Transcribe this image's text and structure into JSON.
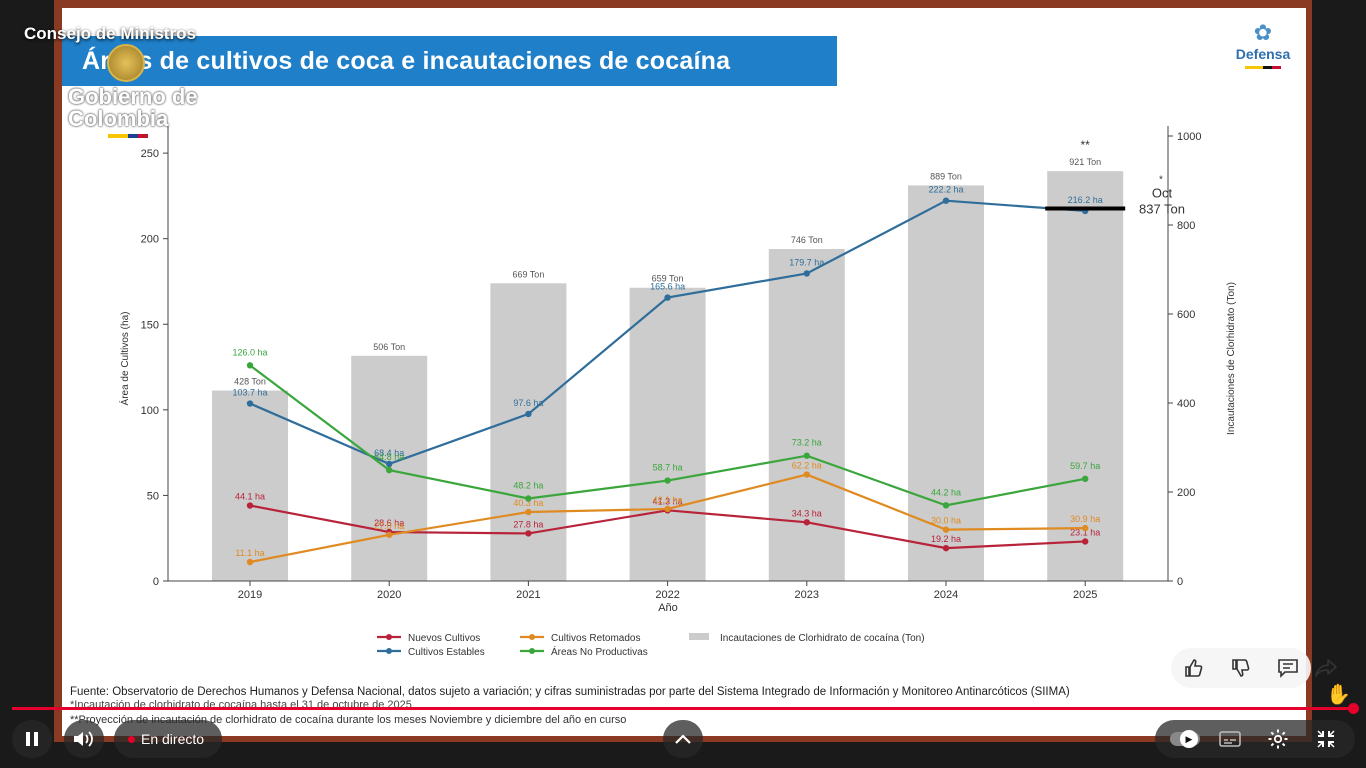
{
  "player": {
    "channel_title": "Consejo de Ministros",
    "live_label": "En directo",
    "icons": {
      "play_pause": "pause-icon",
      "volume": "volume-icon",
      "expand": "chevron-up-icon",
      "like": "thumbs-up-icon",
      "dislike": "thumbs-down-icon",
      "comments": "comment-icon",
      "share": "share-icon",
      "autoplay": "autoplay-toggle-icon",
      "captions": "captions-icon",
      "settings": "gear-icon",
      "fullscreen_exit": "fullscreen-exit-icon"
    },
    "progress": 1.0,
    "accent_color": "#e4002b"
  },
  "slide": {
    "title": "Áreas de cultivos de coca e incautaciones de cocaína",
    "gov_logo": "Gobierno de Colombia",
    "defensa_logo": "Defensa",
    "source": "Fuente: Observatorio de Derechos Humanos y Defensa Nacional, datos sujeto a variación; y cifras suministradas por parte del Sistema Integrado de Información y Monitoreo Antinarcóticos (SIIMA)",
    "note1": "*Incautación de clorhidrato de cocaína hasta el 31 de octubre de 2025",
    "note2": "**Proyección de incautación de clorhidrato de cocaína durante los meses Noviembre y diciembre del año en curso",
    "banner_color": "#1f7fc8"
  },
  "chart_data": {
    "type": "bar",
    "categories": [
      "2019",
      "2020",
      "2021",
      "2022",
      "2023",
      "2024",
      "2025"
    ],
    "xlabel": "Año",
    "ylabel": "Área de Cultivos (ha)",
    "y2label": "Incautaciones de Clorhidrato (Ton)",
    "ylim": [
      0,
      260
    ],
    "y2lim": [
      0,
      1000
    ],
    "yticks": [
      0,
      50,
      100,
      150,
      200,
      250
    ],
    "y2ticks": [
      0,
      200,
      400,
      600,
      800,
      1000
    ],
    "bars": {
      "name": "Incautaciones de Clorhidrato de cocaína (Ton)",
      "color": "#cccccc",
      "values": [
        428,
        506,
        669,
        659,
        746,
        889,
        921
      ],
      "labels": [
        "428 Ton",
        "506 Ton",
        "669 Ton",
        "659 Ton",
        "746 Ton",
        "889 Ton",
        "921 Ton"
      ]
    },
    "series": [
      {
        "name": "Nuevos Cultivos",
        "color": "#b8233a",
        "values": [
          44.1,
          28.6,
          27.8,
          41.3,
          34.3,
          19.2,
          23.1
        ],
        "labels": [
          "44.1 ha",
          "28.6 ha",
          "27.8 ha",
          "41.3 ha",
          "34.3 ha",
          "19.2 ha",
          "23.1 ha"
        ]
      },
      {
        "name": "Cultivos Retomados",
        "color": "#e08a22",
        "values": [
          11.1,
          27.0,
          40.3,
          42.1,
          62.2,
          30.0,
          30.9
        ],
        "labels": [
          "11.1 ha",
          "27.0 ha",
          "40.3 ha",
          "42.1 ha",
          "62.2 ha",
          "30.0 ha",
          "30.9 ha"
        ]
      },
      {
        "name": "Cultivos Estables",
        "color": "#2f6e9a",
        "values": [
          103.7,
          68.4,
          97.6,
          165.6,
          179.7,
          222.2,
          216.2
        ],
        "labels": [
          "103.7 ha",
          "68.4 ha",
          "97.6 ha",
          "165.6 ha",
          "179.7 ha",
          "222.2 ha",
          "216.2 ha"
        ]
      },
      {
        "name": "Áreas No Productivas",
        "color": "#3aa63c",
        "values": [
          126.0,
          64.8,
          48.2,
          58.7,
          73.2,
          44.2,
          59.7
        ],
        "labels": [
          "126.0 ha",
          "64.8 ha",
          "48.2 ha",
          "58.7 ha",
          "73.2 ha",
          "44.2 ha",
          "59.7 ha"
        ]
      }
    ],
    "annotations": {
      "projection_mark": "**",
      "oct_mark": "*",
      "oct_label": "Oct",
      "oct_value_label": "837 Ton",
      "oct_value": 837
    },
    "legend": [
      "Nuevos Cultivos",
      "Cultivos Retomados",
      "Incautaciones de Clorhidrato de cocaína (Ton)",
      "Cultivos Estables",
      "Áreas No Productivas"
    ]
  }
}
